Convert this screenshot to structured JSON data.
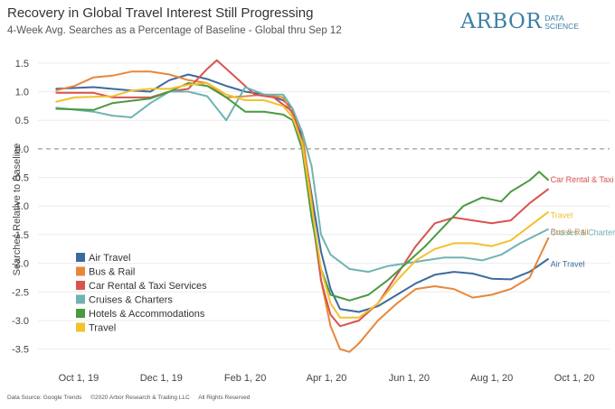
{
  "header": {
    "title": "Recovery in Global Travel Interest Still Progressing",
    "subtitle": "4-Week Avg. Searches as a Percentage of Baseline - Global thru Sep 12"
  },
  "logo": {
    "main": "ARBOR",
    "sub_line1": "DATA",
    "sub_line2": "SCIENCE",
    "color": "#3c7fa6"
  },
  "footer": {
    "source": "Data Source: Google Trends",
    "copyright": "©2020 Arbor Research & Trading LLC",
    "rights": "All Rights Reserved"
  },
  "chart_data": {
    "type": "line",
    "title": "Recovery in Global Travel Interest Still Progressing",
    "subtitle": "4-Week Avg. Searches as a Percentage of Baseline - Global thru Sep 12",
    "ylabel": "Searches Relative to Baseline",
    "xlabel": "",
    "x_ticks": [
      "Oct 1, 19",
      "Dec 1, 19",
      "Feb 1, 20",
      "Apr 1, 20",
      "Jun 1, 20",
      "Aug 1, 20",
      "Oct 1, 20"
    ],
    "y_ticks": [
      "1.5",
      "1.0",
      "0.5",
      "0.0",
      "-0.5",
      "-1.0",
      "-1.5",
      "-2.0",
      "-2.5",
      "-3.0",
      "-3.5"
    ],
    "xlim": [
      "2019-09-01",
      "2020-10-27"
    ],
    "ylim": [
      -3.9,
      1.75
    ],
    "grid": true,
    "reference_line": 0,
    "legend_position": "left-bottom",
    "series": [
      {
        "name": "Air Travel",
        "color": "#3c6a9e",
        "points": [
          [
            "2019-09-14",
            1.05
          ],
          [
            "2019-10-12",
            1.08
          ],
          [
            "2019-11-09",
            1.02
          ],
          [
            "2019-11-23",
            1.0
          ],
          [
            "2019-12-07",
            1.2
          ],
          [
            "2019-12-21",
            1.3
          ],
          [
            "2020-01-04",
            1.22
          ],
          [
            "2020-01-18",
            1.1
          ],
          [
            "2020-02-01",
            1.0
          ],
          [
            "2020-02-15",
            0.95
          ],
          [
            "2020-02-29",
            0.85
          ],
          [
            "2020-03-07",
            0.7
          ],
          [
            "2020-03-14",
            0.2
          ],
          [
            "2020-03-21",
            -0.8
          ],
          [
            "2020-03-28",
            -1.8
          ],
          [
            "2020-04-04",
            -2.45
          ],
          [
            "2020-04-11",
            -2.8
          ],
          [
            "2020-04-25",
            -2.85
          ],
          [
            "2020-05-09",
            -2.75
          ],
          [
            "2020-05-23",
            -2.55
          ],
          [
            "2020-06-06",
            -2.35
          ],
          [
            "2020-06-20",
            -2.2
          ],
          [
            "2020-07-04",
            -2.15
          ],
          [
            "2020-07-18",
            -2.18
          ],
          [
            "2020-08-01",
            -2.27
          ],
          [
            "2020-08-15",
            -2.28
          ],
          [
            "2020-08-29",
            -2.15
          ],
          [
            "2020-09-12",
            -1.92
          ]
        ],
        "end_label": "Air Travel"
      },
      {
        "name": "Bus & Rail",
        "color": "#e8873a",
        "points": [
          [
            "2019-09-14",
            1.02
          ],
          [
            "2019-09-28",
            1.1
          ],
          [
            "2019-10-12",
            1.25
          ],
          [
            "2019-10-26",
            1.28
          ],
          [
            "2019-11-09",
            1.35
          ],
          [
            "2019-11-23",
            1.35
          ],
          [
            "2019-12-07",
            1.3
          ],
          [
            "2019-12-21",
            1.2
          ],
          [
            "2020-01-04",
            1.15
          ],
          [
            "2020-01-18",
            0.9
          ],
          [
            "2020-02-01",
            0.92
          ],
          [
            "2020-02-15",
            0.95
          ],
          [
            "2020-02-29",
            0.9
          ],
          [
            "2020-03-14",
            0.3
          ],
          [
            "2020-03-21",
            -0.9
          ],
          [
            "2020-03-28",
            -2.3
          ],
          [
            "2020-04-04",
            -3.1
          ],
          [
            "2020-04-11",
            -3.5
          ],
          [
            "2020-04-18",
            -3.55
          ],
          [
            "2020-04-25",
            -3.4
          ],
          [
            "2020-05-09",
            -3.0
          ],
          [
            "2020-05-23",
            -2.7
          ],
          [
            "2020-06-06",
            -2.45
          ],
          [
            "2020-06-20",
            -2.4
          ],
          [
            "2020-07-04",
            -2.45
          ],
          [
            "2020-07-18",
            -2.6
          ],
          [
            "2020-08-01",
            -2.55
          ],
          [
            "2020-08-15",
            -2.45
          ],
          [
            "2020-08-29",
            -2.25
          ],
          [
            "2020-09-12",
            -1.55
          ]
        ],
        "end_label": "Bus & Rail"
      },
      {
        "name": "Car Rental & Taxi Services",
        "color": "#d9534f",
        "points": [
          [
            "2019-09-14",
            0.98
          ],
          [
            "2019-10-12",
            0.98
          ],
          [
            "2019-10-26",
            0.9
          ],
          [
            "2019-11-23",
            0.9
          ],
          [
            "2019-12-07",
            1.0
          ],
          [
            "2019-12-21",
            1.05
          ],
          [
            "2020-01-04",
            1.4
          ],
          [
            "2020-01-11",
            1.55
          ],
          [
            "2020-01-25",
            1.25
          ],
          [
            "2020-02-08",
            0.95
          ],
          [
            "2020-02-22",
            0.9
          ],
          [
            "2020-03-07",
            0.65
          ],
          [
            "2020-03-14",
            0.1
          ],
          [
            "2020-03-21",
            -1.1
          ],
          [
            "2020-03-28",
            -2.3
          ],
          [
            "2020-04-04",
            -2.9
          ],
          [
            "2020-04-11",
            -3.1
          ],
          [
            "2020-04-25",
            -3.0
          ],
          [
            "2020-05-09",
            -2.7
          ],
          [
            "2020-05-23",
            -2.2
          ],
          [
            "2020-06-06",
            -1.7
          ],
          [
            "2020-06-20",
            -1.3
          ],
          [
            "2020-07-04",
            -1.2
          ],
          [
            "2020-07-18",
            -1.25
          ],
          [
            "2020-08-01",
            -1.3
          ],
          [
            "2020-08-15",
            -1.25
          ],
          [
            "2020-08-29",
            -0.95
          ],
          [
            "2020-09-12",
            -0.7
          ]
        ],
        "end_label": "Car Rental & Taxi Services"
      },
      {
        "name": "Cruises & Charters",
        "color": "#6fb3b2",
        "points": [
          [
            "2019-09-14",
            0.72
          ],
          [
            "2019-10-12",
            0.65
          ],
          [
            "2019-10-26",
            0.58
          ],
          [
            "2019-11-09",
            0.55
          ],
          [
            "2019-11-23",
            0.8
          ],
          [
            "2019-12-07",
            1.0
          ],
          [
            "2019-12-21",
            1.0
          ],
          [
            "2020-01-04",
            0.92
          ],
          [
            "2020-01-18",
            0.5
          ],
          [
            "2020-02-01",
            1.08
          ],
          [
            "2020-02-15",
            0.95
          ],
          [
            "2020-02-29",
            0.95
          ],
          [
            "2020-03-07",
            0.7
          ],
          [
            "2020-03-14",
            0.3
          ],
          [
            "2020-03-21",
            -0.3
          ],
          [
            "2020-03-28",
            -1.5
          ],
          [
            "2020-04-04",
            -1.85
          ],
          [
            "2020-04-18",
            -2.1
          ],
          [
            "2020-05-02",
            -2.15
          ],
          [
            "2020-05-16",
            -2.05
          ],
          [
            "2020-05-30",
            -2.0
          ],
          [
            "2020-06-13",
            -1.95
          ],
          [
            "2020-06-27",
            -1.9
          ],
          [
            "2020-07-11",
            -1.9
          ],
          [
            "2020-07-25",
            -1.95
          ],
          [
            "2020-08-08",
            -1.85
          ],
          [
            "2020-08-22",
            -1.65
          ],
          [
            "2020-09-12",
            -1.4
          ]
        ],
        "end_label": "Cruises & Charters"
      },
      {
        "name": "Hotels & Accommodations",
        "color": "#4a9a3f",
        "points": [
          [
            "2019-09-14",
            0.7
          ],
          [
            "2019-10-12",
            0.68
          ],
          [
            "2019-10-26",
            0.8
          ],
          [
            "2019-11-23",
            0.88
          ],
          [
            "2019-12-07",
            1.0
          ],
          [
            "2019-12-21",
            1.15
          ],
          [
            "2020-01-04",
            1.1
          ],
          [
            "2020-01-18",
            0.9
          ],
          [
            "2020-02-01",
            0.65
          ],
          [
            "2020-02-15",
            0.65
          ],
          [
            "2020-02-29",
            0.6
          ],
          [
            "2020-03-07",
            0.5
          ],
          [
            "2020-03-14",
            0.0
          ],
          [
            "2020-03-21",
            -1.2
          ],
          [
            "2020-03-28",
            -2.1
          ],
          [
            "2020-04-04",
            -2.55
          ],
          [
            "2020-04-18",
            -2.65
          ],
          [
            "2020-05-02",
            -2.55
          ],
          [
            "2020-05-16",
            -2.3
          ],
          [
            "2020-05-30",
            -2.0
          ],
          [
            "2020-06-13",
            -1.7
          ],
          [
            "2020-06-27",
            -1.35
          ],
          [
            "2020-07-11",
            -1.0
          ],
          [
            "2020-07-25",
            -0.85
          ],
          [
            "2020-08-08",
            -0.92
          ],
          [
            "2020-08-15",
            -0.75
          ],
          [
            "2020-08-29",
            -0.55
          ],
          [
            "2020-09-05",
            -0.4
          ],
          [
            "2020-09-12",
            -0.55
          ]
        ],
        "end_label": ""
      },
      {
        "name": "Travel",
        "color": "#f2c12e",
        "points": [
          [
            "2019-09-14",
            0.82
          ],
          [
            "2019-09-28",
            0.9
          ],
          [
            "2019-10-26",
            0.92
          ],
          [
            "2019-11-09",
            1.02
          ],
          [
            "2019-11-23",
            1.05
          ],
          [
            "2019-12-07",
            1.05
          ],
          [
            "2019-12-21",
            1.12
          ],
          [
            "2020-01-04",
            1.15
          ],
          [
            "2020-01-18",
            0.95
          ],
          [
            "2020-02-01",
            0.85
          ],
          [
            "2020-02-15",
            0.85
          ],
          [
            "2020-02-29",
            0.75
          ],
          [
            "2020-03-07",
            0.55
          ],
          [
            "2020-03-14",
            0.1
          ],
          [
            "2020-03-21",
            -1.0
          ],
          [
            "2020-03-28",
            -2.1
          ],
          [
            "2020-04-04",
            -2.7
          ],
          [
            "2020-04-11",
            -2.95
          ],
          [
            "2020-04-25",
            -2.95
          ],
          [
            "2020-05-09",
            -2.7
          ],
          [
            "2020-05-23",
            -2.3
          ],
          [
            "2020-06-06",
            -1.95
          ],
          [
            "2020-06-20",
            -1.75
          ],
          [
            "2020-07-04",
            -1.65
          ],
          [
            "2020-07-18",
            -1.65
          ],
          [
            "2020-08-01",
            -1.7
          ],
          [
            "2020-08-15",
            -1.6
          ],
          [
            "2020-08-29",
            -1.35
          ],
          [
            "2020-09-12",
            -1.1
          ]
        ],
        "end_label": "Travel"
      }
    ]
  }
}
